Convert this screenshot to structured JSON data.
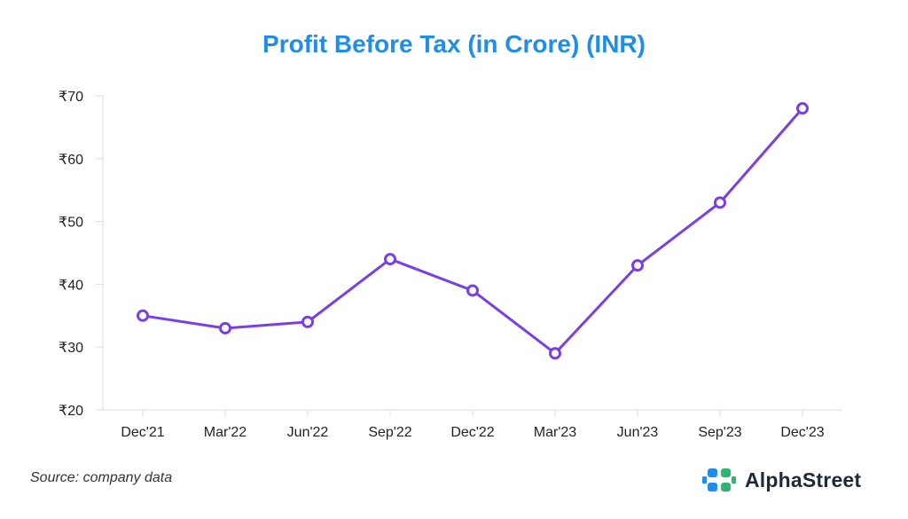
{
  "chart_data": {
    "type": "line",
    "title": "Profit Before Tax (in Crore) (INR)",
    "xlabel": "",
    "ylabel": "",
    "categories": [
      "Dec'21",
      "Mar'22",
      "Jun'22",
      "Sep'22",
      "Dec'22",
      "Mar'23",
      "Jun'23",
      "Sep'23",
      "Dec'23"
    ],
    "series": [
      {
        "values": [
          35,
          33,
          34,
          44,
          39,
          29,
          43,
          53,
          68
        ]
      }
    ],
    "ylim": [
      20,
      70
    ],
    "yticks": [
      20,
      30,
      40,
      50,
      60,
      70
    ],
    "ytick_labels": [
      "₹20",
      "₹30",
      "₹40",
      "₹50",
      "₹60",
      "₹70"
    ],
    "grid": false,
    "colors": {
      "line": "#7a3fe4",
      "title": "#1f8ee6"
    }
  },
  "footer": {
    "source": "Source: company data",
    "brand": "AlphaStreet"
  },
  "icons": {
    "brand_logo": "alphastreet-logo-icon"
  }
}
